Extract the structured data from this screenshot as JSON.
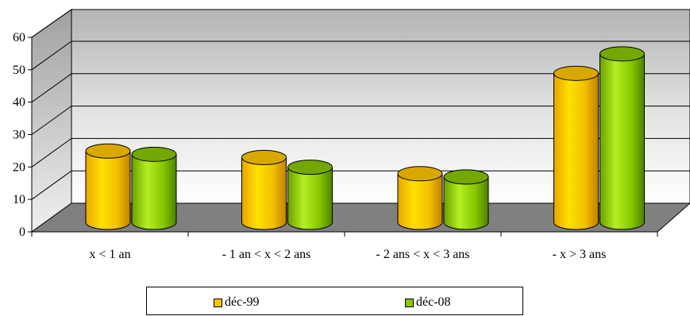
{
  "chart_data": {
    "type": "bar",
    "categories": [
      "x < 1 an",
      "- 1 an < x < 2 ans",
      "- 2 ans < x < 3 ans",
      "- x > 3 ans"
    ],
    "series": [
      {
        "name": "déc-99",
        "values": [
          22,
          20,
          15,
          46
        ],
        "color": "#f5c400"
      },
      {
        "name": "déc-08",
        "values": [
          21,
          17,
          14,
          52
        ],
        "color": "#8cc800"
      }
    ],
    "yticks": [
      "0",
      "10",
      "20",
      "30",
      "40",
      "50",
      "60"
    ],
    "ylim": [
      0,
      60
    ],
    "grid": true,
    "legend": "bottom",
    "floor_color": "#808080"
  }
}
